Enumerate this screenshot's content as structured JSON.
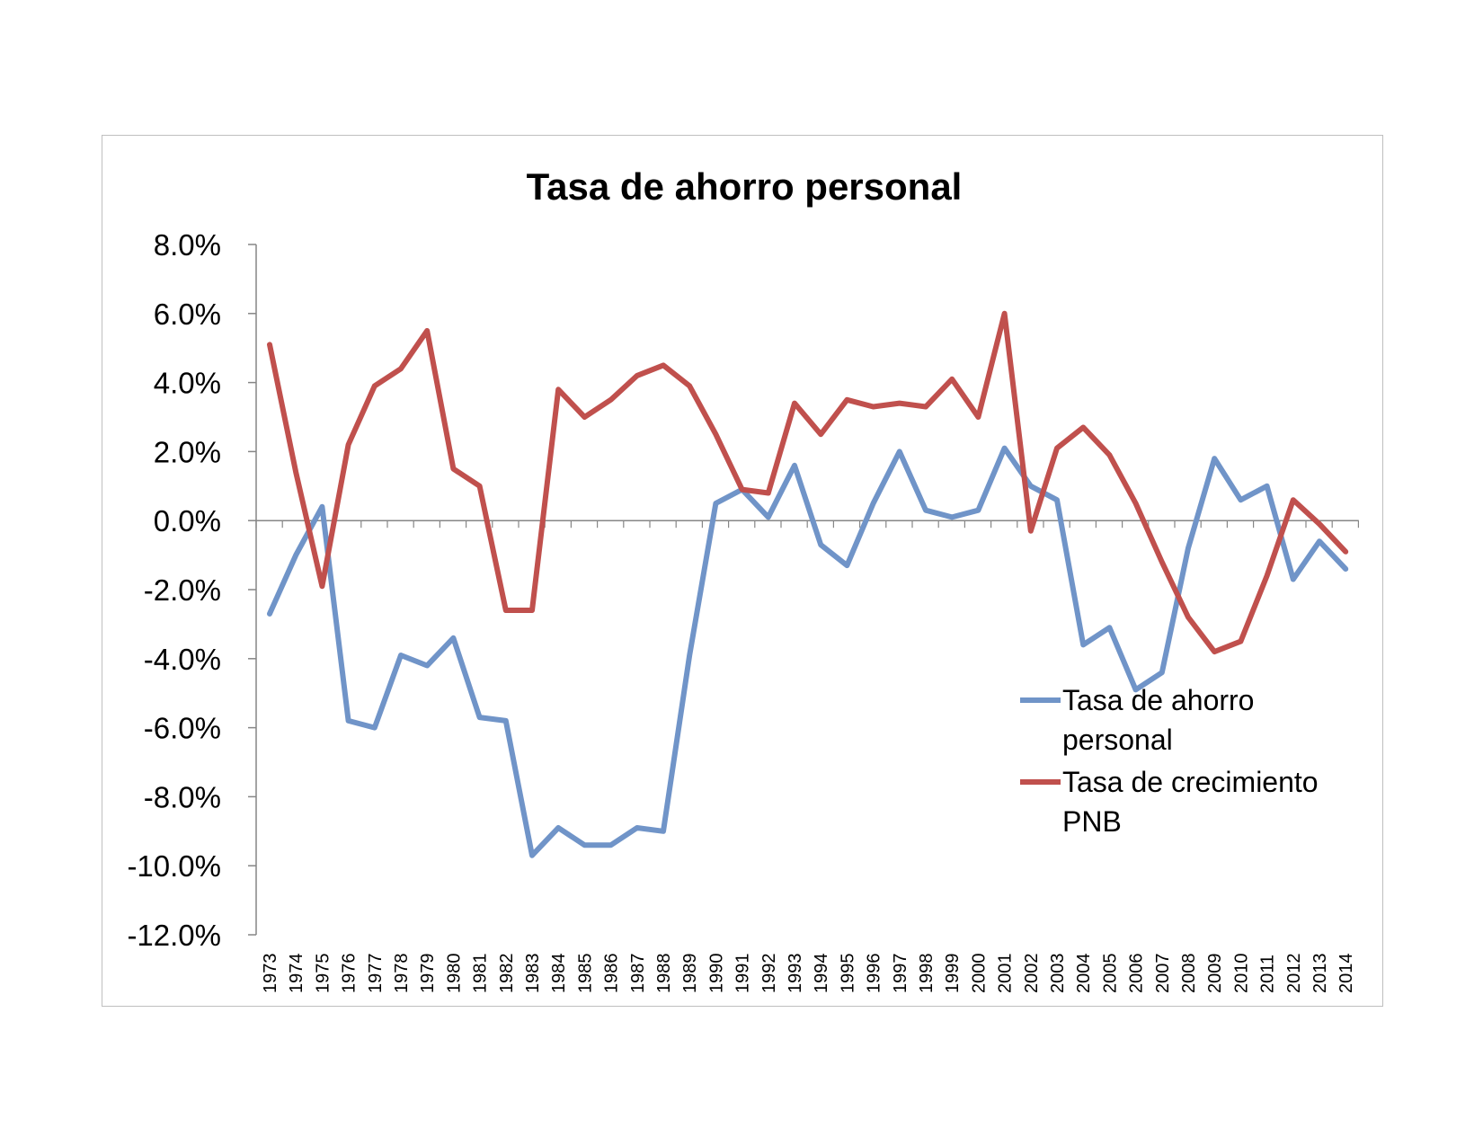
{
  "chart_data": {
    "type": "line",
    "title": "Tasa de ahorro personal",
    "xlabel": "",
    "ylabel": "",
    "ylim": [
      -0.12,
      0.08
    ],
    "yticks": [
      0.08,
      0.06,
      0.04,
      0.02,
      0.0,
      -0.02,
      -0.04,
      -0.06,
      -0.08,
      -0.1,
      -0.12
    ],
    "ytick_labels": [
      "8.0%",
      "6.0%",
      "4.0%",
      "2.0%",
      "0.0%",
      "-2.0%",
      "-4.0%",
      "-6.0%",
      "-8.0%",
      "-10.0%",
      "-12.0%"
    ],
    "grid": false,
    "legend_position": "right",
    "categories": [
      "1973",
      "1974",
      "1975",
      "1976",
      "1977",
      "1978",
      "1979",
      "1980",
      "1981",
      "1982",
      "1983",
      "1984",
      "1985",
      "1986",
      "1987",
      "1988",
      "1989",
      "1990",
      "1991",
      "1992",
      "1993",
      "1994",
      "1995",
      "1996",
      "1997",
      "1998",
      "1999",
      "2000",
      "2001",
      "2002",
      "2003",
      "2004",
      "2005",
      "2006",
      "2007",
      "2008",
      "2009",
      "2010",
      "2011",
      "2012",
      "2013",
      "2014"
    ],
    "series": [
      {
        "name": "Tasa de ahorro personal",
        "color": "#7094c8",
        "values": [
          -0.027,
          -0.01,
          0.004,
          -0.058,
          -0.06,
          -0.039,
          -0.042,
          -0.034,
          -0.057,
          -0.058,
          -0.097,
          -0.089,
          -0.094,
          -0.094,
          -0.089,
          -0.09,
          -0.039,
          0.005,
          0.009,
          0.001,
          0.016,
          -0.007,
          -0.013,
          0.005,
          0.02,
          0.003,
          0.001,
          0.003,
          0.021,
          0.01,
          0.006,
          -0.036,
          -0.031,
          -0.049,
          -0.044,
          -0.008,
          0.018,
          0.006,
          0.01,
          -0.017,
          -0.006,
          -0.014
        ]
      },
      {
        "name": "Tasa de crecimiento PNB",
        "color": "#c0504d",
        "values": [
          0.051,
          0.014,
          -0.019,
          0.022,
          0.039,
          0.044,
          0.055,
          0.015,
          0.01,
          -0.026,
          -0.026,
          0.038,
          0.03,
          0.035,
          0.042,
          0.045,
          0.039,
          0.025,
          0.009,
          0.008,
          0.034,
          0.025,
          0.035,
          0.033,
          0.034,
          0.033,
          0.041,
          0.03,
          0.06,
          -0.003,
          0.021,
          0.027,
          0.019,
          0.005,
          -0.012,
          -0.028,
          -0.038,
          -0.035,
          -0.016,
          0.006,
          -0.001,
          -0.009
        ]
      }
    ],
    "legend": {
      "entries": [
        {
          "line1": "Tasa de ahorro",
          "line2": "personal"
        },
        {
          "line1": "Tasa de crecimiento",
          "line2": "PNB"
        }
      ]
    }
  }
}
